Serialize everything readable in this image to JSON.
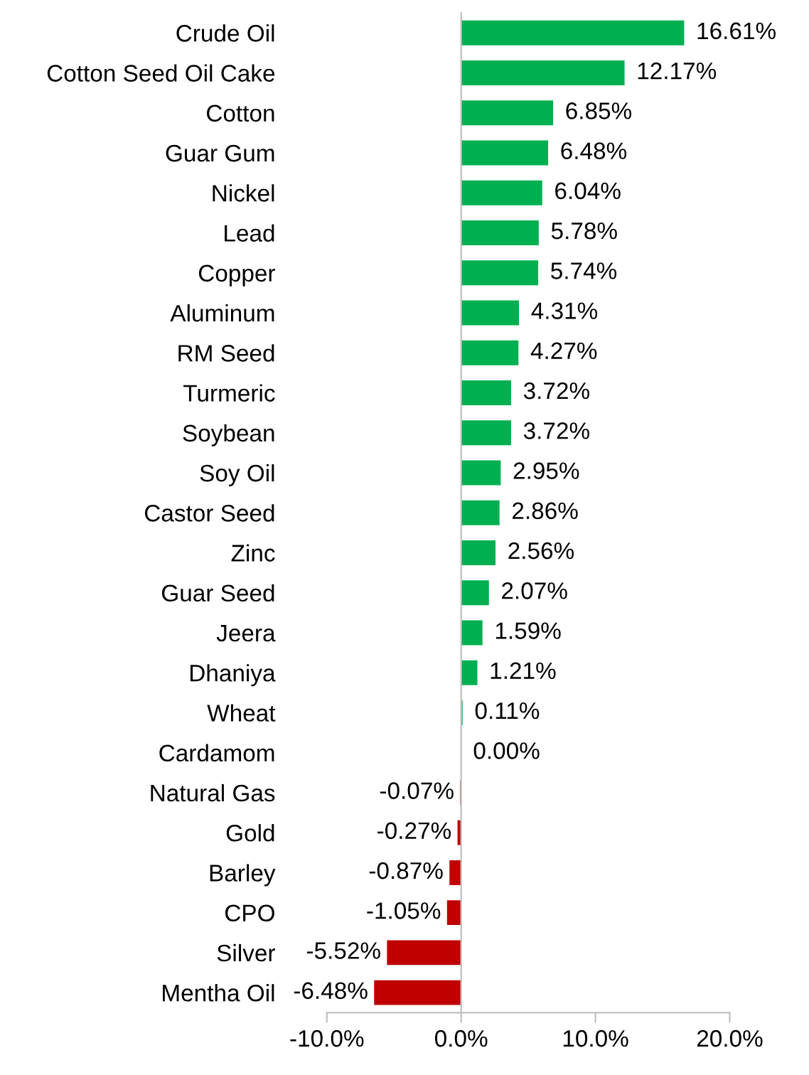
{
  "chart_data": {
    "type": "bar",
    "orientation": "horizontal",
    "categories": [
      "Crude Oil",
      "Cotton Seed Oil Cake",
      "Cotton",
      "Guar Gum",
      "Nickel",
      "Lead",
      "Copper",
      "Aluminum",
      "RM Seed",
      "Turmeric",
      "Soybean",
      "Soy Oil",
      "Castor Seed",
      "Zinc",
      "Guar Seed",
      "Jeera",
      "Dhaniya",
      "Wheat",
      "Cardamom",
      "Natural Gas",
      "Gold",
      "Barley",
      "CPO",
      "Silver",
      "Mentha Oil"
    ],
    "values": [
      16.61,
      12.17,
      6.85,
      6.48,
      6.04,
      5.78,
      5.74,
      4.31,
      4.27,
      3.72,
      3.72,
      2.95,
      2.86,
      2.56,
      2.07,
      1.59,
      1.21,
      0.11,
      0.0,
      -0.07,
      -0.27,
      -0.87,
      -1.05,
      -5.52,
      -6.48
    ],
    "colors": [
      "#00b050",
      "#00b050",
      "#00b050",
      "#00b050",
      "#00b050",
      "#00b050",
      "#00b050",
      "#00b050",
      "#00b050",
      "#00b050",
      "#00b050",
      "#00b050",
      "#00b050",
      "#00b050",
      "#00b050",
      "#00b050",
      "#00b050",
      "#00b050",
      "#00b050",
      "#c00000",
      "#c00000",
      "#c00000",
      "#c00000",
      "#c00000",
      "#c00000"
    ],
    "value_labels": [
      "16.61%",
      "12.17%",
      "6.85%",
      "6.48%",
      "6.04%",
      "5.78%",
      "5.74%",
      "4.31%",
      "4.27%",
      "3.72%",
      "3.72%",
      "2.95%",
      "2.86%",
      "2.56%",
      "2.07%",
      "1.59%",
      "1.21%",
      "0.11%",
      "0.00%",
      "-0.07%",
      "-0.27%",
      "-0.87%",
      "-1.05%",
      "-5.52%",
      "-6.48%"
    ],
    "xlim": [
      -10,
      20
    ],
    "xticks": [
      {
        "value": -10,
        "label": "-10.0%"
      },
      {
        "value": 0,
        "label": "0.0%"
      },
      {
        "value": 10,
        "label": "10.0%"
      },
      {
        "value": 20,
        "label": "20.0%"
      }
    ],
    "legend": false
  }
}
